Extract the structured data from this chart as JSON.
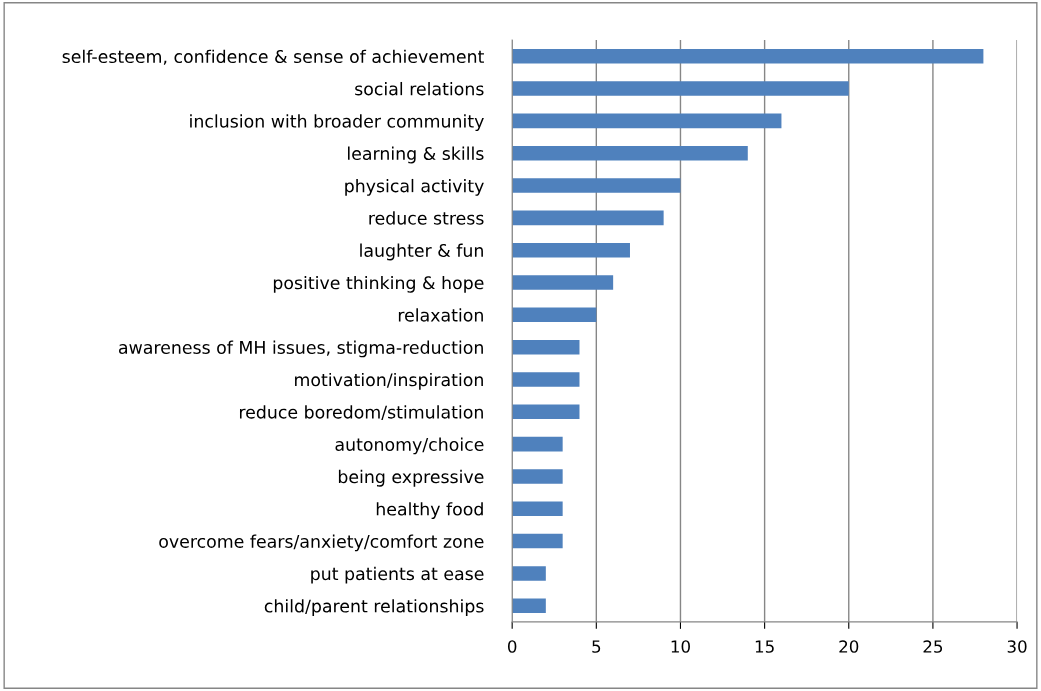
{
  "chart_data": {
    "type": "bar",
    "orientation": "horizontal",
    "categories": [
      "self-esteem, confidence & sense of achievement",
      "social relations",
      "inclusion with broader community",
      "learning & skills",
      "physical activity",
      "reduce stress",
      "laughter & fun",
      "positive thinking & hope",
      "relaxation",
      "awareness of MH issues, stigma-reduction",
      "motivation/inspiration",
      "reduce boredom/stimulation",
      "autonomy/choice",
      "being expressive",
      "healthy food",
      "overcome fears/anxiety/comfort zone",
      "put patients at ease",
      "child/parent relationships"
    ],
    "values": [
      28,
      20,
      16,
      14,
      10,
      9,
      7,
      6,
      5,
      4,
      4,
      4,
      3,
      3,
      3,
      3,
      2,
      2
    ],
    "color": "#4f81bd",
    "xlim": [
      0,
      30
    ],
    "xticks": [
      0,
      5,
      10,
      15,
      20,
      25,
      30
    ],
    "grid": "x",
    "legend": false
  }
}
